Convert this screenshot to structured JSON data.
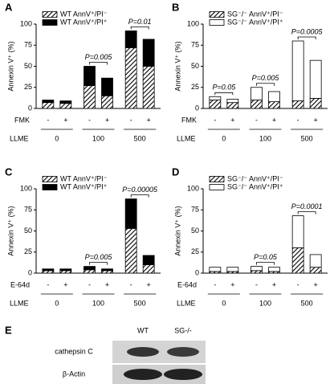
{
  "chart_data": [
    {
      "type": "bar",
      "panel_label": "A",
      "y_label": "Annexin V⁺ (%)",
      "categories": [
        "-",
        "+",
        "-",
        "+",
        "-",
        "+"
      ],
      "treatment_label": "FMK",
      "group_label": "LLME",
      "groups": [
        "0",
        "100",
        "500"
      ],
      "p_values": [
        null,
        "P=0.005",
        "P=0.01"
      ],
      "series": [
        {
          "name": "WT AnnV⁺/PI⁻",
          "color": "#000000",
          "fill": "hatch",
          "values": [
            7,
            6,
            27,
            15,
            72,
            50
          ]
        },
        {
          "name": "WT AnnV⁺/PI⁺",
          "color": "#000000",
          "fill": "solid",
          "values": [
            3,
            3,
            23,
            21,
            20,
            32
          ]
        }
      ],
      "ylim": [
        0,
        100
      ],
      "yticks": [
        0,
        25,
        50,
        75,
        100
      ]
    },
    {
      "type": "bar",
      "panel_label": "B",
      "y_label": "Annexin V⁺ (%)",
      "categories": [
        "-",
        "+",
        "-",
        "+",
        "-",
        "+"
      ],
      "treatment_label": "FMK",
      "group_label": "LLME",
      "groups": [
        "0",
        "100",
        "500"
      ],
      "p_values": [
        "P=0.05",
        "P=0.005",
        "P=0.0005"
      ],
      "series": [
        {
          "name": "SG⁻/⁻ AnnV⁺/PI⁻",
          "color": "#000000",
          "fill": "hatch",
          "values": [
            10,
            7,
            10,
            8,
            9,
            12
          ]
        },
        {
          "name": "SG⁻/⁻ AnnV⁺/PI⁺",
          "color": "#ffffff",
          "fill": "solid",
          "values": [
            4,
            4,
            15,
            12,
            71,
            45
          ]
        }
      ],
      "ylim": [
        0,
        100
      ],
      "yticks": [
        0,
        25,
        50,
        75,
        100
      ]
    },
    {
      "type": "bar",
      "panel_label": "C",
      "y_label": "Annexin V⁺ (%)",
      "categories": [
        "-",
        "+",
        "-",
        "+",
        "-",
        "+"
      ],
      "treatment_label": "E-64d",
      "group_label": "LLME",
      "groups": [
        "0",
        "100",
        "500"
      ],
      "p_values": [
        null,
        "P=0.005",
        "P=0.00005"
      ],
      "series": [
        {
          "name": "WT AnnV⁺/PI⁻",
          "color": "#000000",
          "fill": "hatch",
          "values": [
            3,
            3,
            4,
            3,
            53,
            10
          ]
        },
        {
          "name": "WT AnnV⁺/PI⁺",
          "color": "#000000",
          "fill": "solid",
          "values": [
            2,
            2,
            4,
            2,
            35,
            11
          ]
        }
      ],
      "ylim": [
        0,
        100
      ],
      "yticks": [
        0,
        25,
        50,
        75,
        100
      ]
    },
    {
      "type": "bar",
      "panel_label": "D",
      "y_label": "Annexin V⁺ (%)",
      "categories": [
        "-",
        "+",
        "-",
        "+",
        "-",
        "+"
      ],
      "treatment_label": "E-64d",
      "group_label": "LLME",
      "groups": [
        "0",
        "100",
        "500"
      ],
      "p_values": [
        null,
        "P=0.05",
        "P=0.0001"
      ],
      "series": [
        {
          "name": "SG⁻/⁻ AnnV⁺/PI⁻",
          "color": "#000000",
          "fill": "hatch",
          "values": [
            2,
            2,
            3,
            2,
            30,
            7
          ]
        },
        {
          "name": "SG⁻/⁻ AnnV⁺/PI⁺",
          "color": "#ffffff",
          "fill": "solid",
          "values": [
            5,
            5,
            5,
            5,
            38,
            15
          ]
        }
      ],
      "ylim": [
        0,
        100
      ],
      "yticks": [
        0,
        25,
        50,
        75,
        100
      ]
    }
  ],
  "blot": {
    "panel_label": "E",
    "lanes": [
      "WT",
      "SG-/-"
    ],
    "rows": [
      "cathepsin C",
      "β-Actin"
    ]
  }
}
